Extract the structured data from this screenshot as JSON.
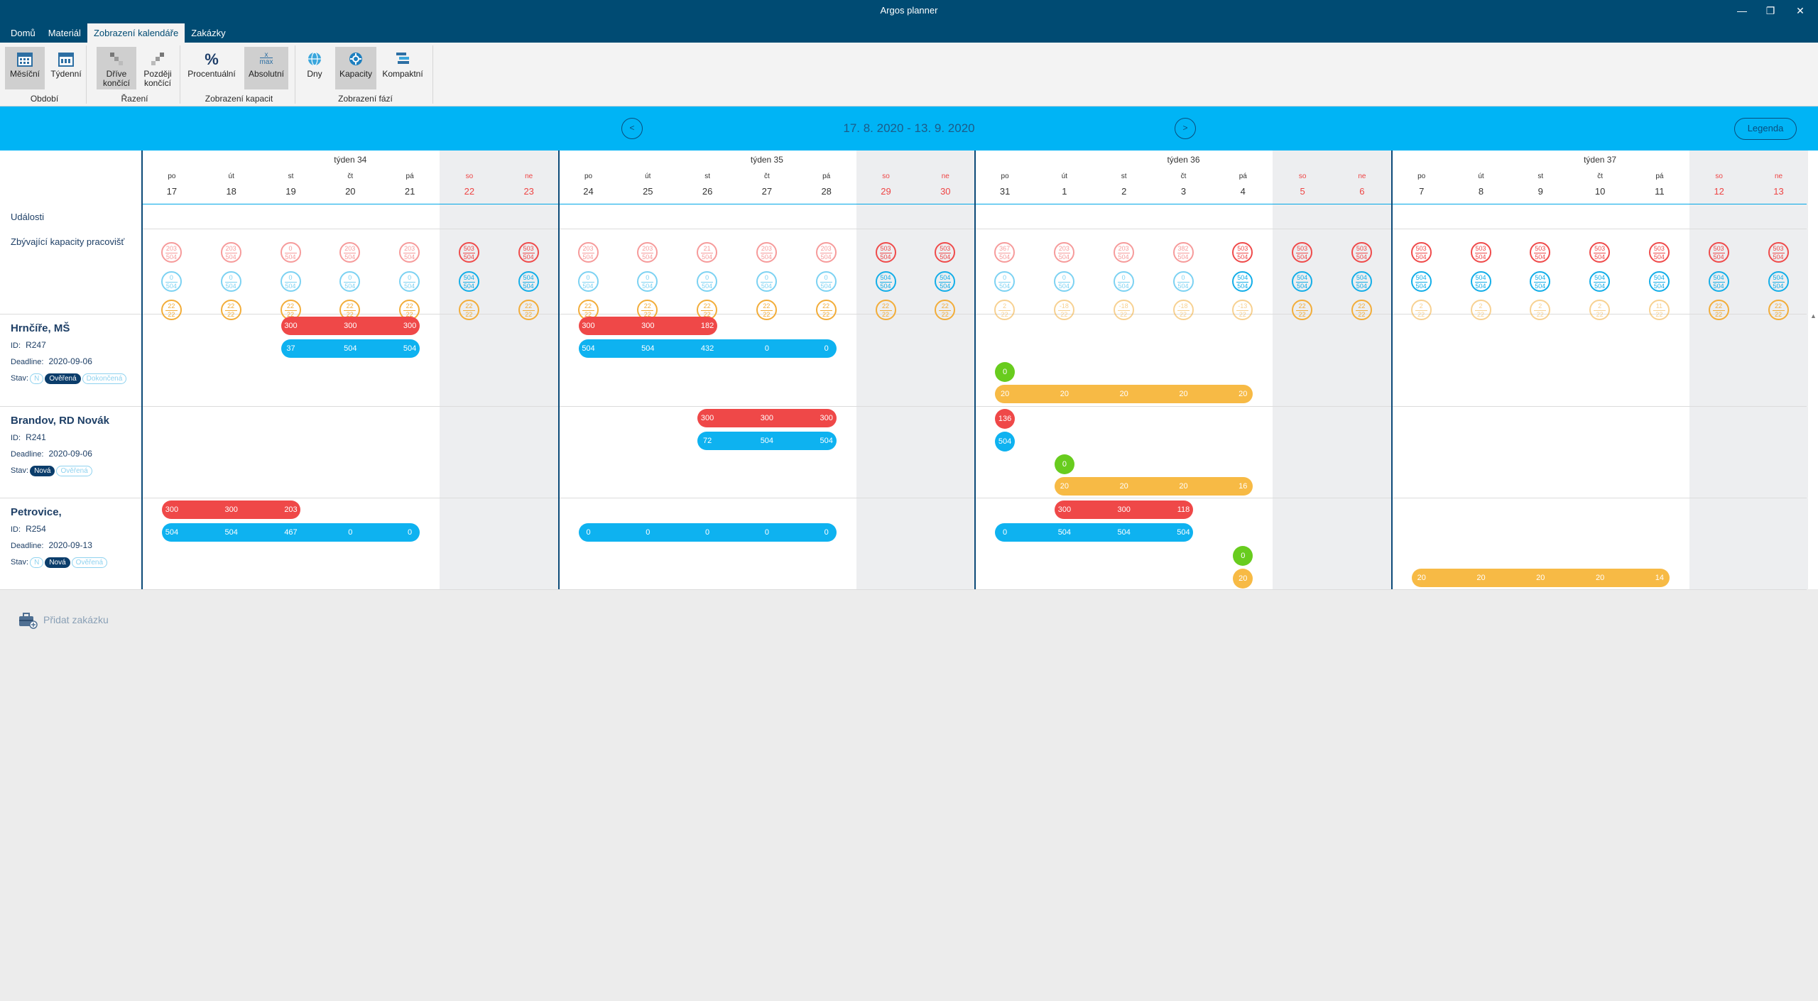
{
  "window": {
    "title": "Argos planner",
    "min": "—",
    "max": "❐",
    "close": "✕"
  },
  "tabs": [
    "Domů",
    "Materiál",
    "Zobrazení kalendáře",
    "Zakázky"
  ],
  "ribbon": {
    "mesicni": "Měsíční",
    "tydenni": "Týdenní",
    "obdobi": "Období",
    "drive1": "Dříve",
    "drive2": "končící",
    "pozdeji1": "Později",
    "pozdeji2": "končící",
    "razeni": "Řazení",
    "procentualni": "Procentuální",
    "absolutni": "Absolutní",
    "zobrazeni_kapacit": "Zobrazení kapacit",
    "dny": "Dny",
    "kapacity": "Kapacity",
    "kompaktni": "Kompaktní",
    "zobrazeni_fazi": "Zobrazení fází",
    "max_x": "x",
    "max_label": "max",
    "percent_icon": "%"
  },
  "nav": {
    "range": "17. 8. 2020 - 13. 9. 2020",
    "prev": "<",
    "next": ">",
    "legend": "Legenda"
  },
  "calendar": {
    "weeks": [
      "týden 34",
      "týden 35",
      "týden 36",
      "týden 37"
    ],
    "daynames": [
      "po",
      "út",
      "st",
      "čt",
      "pá",
      "so",
      "ne"
    ],
    "days": [
      "17",
      "18",
      "19",
      "20",
      "21",
      "22",
      "23",
      "24",
      "25",
      "26",
      "27",
      "28",
      "29",
      "30",
      "31",
      "1",
      "2",
      "3",
      "4",
      "5",
      "6",
      "7",
      "8",
      "9",
      "10",
      "11",
      "12",
      "13"
    ],
    "row_events": "Události",
    "row_capacity": "Zbývající kapacity pracovišť"
  },
  "capacity": {
    "red": [
      [
        "203",
        "504"
      ],
      [
        "203",
        "504"
      ],
      [
        "0",
        "504"
      ],
      [
        "203",
        "504"
      ],
      [
        "203",
        "504"
      ],
      [
        "503",
        "504"
      ],
      [
        "503",
        "504"
      ],
      [
        "203",
        "504"
      ],
      [
        "203",
        "504"
      ],
      [
        "21",
        "504"
      ],
      [
        "203",
        "504"
      ],
      [
        "203",
        "504"
      ],
      [
        "503",
        "504"
      ],
      [
        "503",
        "504"
      ],
      [
        "367",
        "504"
      ],
      [
        "203",
        "504"
      ],
      [
        "203",
        "504"
      ],
      [
        "382",
        "504"
      ],
      [
        "503",
        "504"
      ],
      [
        "503",
        "504"
      ],
      [
        "503",
        "504"
      ],
      [
        "503",
        "504"
      ],
      [
        "503",
        "504"
      ],
      [
        "503",
        "504"
      ],
      [
        "503",
        "504"
      ],
      [
        "503",
        "504"
      ],
      [
        "503",
        "504"
      ],
      [
        "503",
        "504"
      ]
    ],
    "blue": [
      [
        "0",
        "504"
      ],
      [
        "0",
        "504"
      ],
      [
        "0",
        "504"
      ],
      [
        "0",
        "504"
      ],
      [
        "0",
        "504"
      ],
      [
        "504",
        "504"
      ],
      [
        "504",
        "504"
      ],
      [
        "0",
        "504"
      ],
      [
        "0",
        "504"
      ],
      [
        "0",
        "504"
      ],
      [
        "0",
        "504"
      ],
      [
        "0",
        "504"
      ],
      [
        "504",
        "504"
      ],
      [
        "504",
        "504"
      ],
      [
        "0",
        "504"
      ],
      [
        "0",
        "504"
      ],
      [
        "0",
        "504"
      ],
      [
        "0",
        "504"
      ],
      [
        "504",
        "504"
      ],
      [
        "504",
        "504"
      ],
      [
        "504",
        "504"
      ],
      [
        "504",
        "504"
      ],
      [
        "504",
        "504"
      ],
      [
        "504",
        "504"
      ],
      [
        "504",
        "504"
      ],
      [
        "504",
        "504"
      ],
      [
        "504",
        "504"
      ],
      [
        "504",
        "504"
      ]
    ],
    "orange": [
      [
        "22",
        "22"
      ],
      [
        "22",
        "22"
      ],
      [
        "22",
        "22"
      ],
      [
        "22",
        "22"
      ],
      [
        "22",
        "22"
      ],
      [
        "22",
        "22"
      ],
      [
        "22",
        "22"
      ],
      [
        "22",
        "22"
      ],
      [
        "22",
        "22"
      ],
      [
        "22",
        "22"
      ],
      [
        "22",
        "22"
      ],
      [
        "22",
        "22"
      ],
      [
        "22",
        "22"
      ],
      [
        "22",
        "22"
      ],
      [
        "2",
        "22"
      ],
      [
        "-18",
        "22"
      ],
      [
        "-18",
        "22"
      ],
      [
        "-18",
        "22"
      ],
      [
        "-13",
        "22"
      ],
      [
        "22",
        "22"
      ],
      [
        "22",
        "22"
      ],
      [
        "2",
        "22"
      ],
      [
        "2",
        "22"
      ],
      [
        "2",
        "22"
      ],
      [
        "2",
        "22"
      ],
      [
        "11",
        "22"
      ],
      [
        "22",
        "22"
      ],
      [
        "22",
        "22"
      ]
    ]
  },
  "orders": [
    {
      "name": "Hrnčíře, MŠ",
      "id_label": "ID:",
      "id": "R247",
      "deadline_label": "Deadline:",
      "deadline": "2020-09-06",
      "status_label": "Stav:",
      "badges": [
        "N",
        "Ověřená",
        "Dokončená"
      ],
      "active": 1,
      "bars": [
        {
          "color": "red",
          "start": 2,
          "len": 3,
          "row": 0,
          "values": [
            "300",
            "300",
            "300"
          ]
        },
        {
          "color": "blue",
          "start": 2,
          "len": 3,
          "row": 1,
          "values": [
            "37",
            "504",
            "504"
          ]
        },
        {
          "color": "red",
          "start": 7,
          "len": 3,
          "row": 0,
          "values": [
            "300",
            "300",
            "182"
          ]
        },
        {
          "color": "blue",
          "start": 7,
          "len": 5,
          "row": 1,
          "values": [
            "504",
            "504",
            "432",
            "0",
            "0"
          ]
        },
        {
          "color": "green",
          "start": 14,
          "len": 1,
          "row": 2,
          "values": [
            "0"
          ]
        },
        {
          "color": "orange",
          "start": 14,
          "len": 5,
          "row": 3,
          "values": [
            "20",
            "20",
            "20",
            "20",
            "20"
          ]
        }
      ]
    },
    {
      "name": "Brandov, RD Novák",
      "id_label": "ID:",
      "id": "R241",
      "deadline_label": "Deadline:",
      "deadline": "2020-09-06",
      "status_label": "Stav:",
      "badges": [
        "Nová",
        "Ověřená"
      ],
      "active": 0,
      "bars": [
        {
          "color": "red",
          "start": 9,
          "len": 3,
          "row": 0,
          "values": [
            "300",
            "300",
            "300"
          ]
        },
        {
          "color": "blue",
          "start": 9,
          "len": 3,
          "row": 1,
          "values": [
            "72",
            "504",
            "504"
          ]
        },
        {
          "color": "red",
          "start": 14,
          "len": 1,
          "row": 0,
          "values": [
            "136"
          ]
        },
        {
          "color": "blue",
          "start": 14,
          "len": 1,
          "row": 1,
          "values": [
            "504"
          ]
        },
        {
          "color": "green",
          "start": 15,
          "len": 1,
          "row": 2,
          "values": [
            "0"
          ]
        },
        {
          "color": "orange",
          "start": 15,
          "len": 4,
          "row": 3,
          "values": [
            "20",
            "20",
            "20",
            "16"
          ]
        }
      ]
    },
    {
      "name": "Petrovice,",
      "id_label": "ID:",
      "id": "R254",
      "deadline_label": "Deadline:",
      "deadline": "2020-09-13",
      "status_label": "Stav:",
      "badges": [
        "N",
        "Nová",
        "Ověřená"
      ],
      "active": 1,
      "bars": [
        {
          "color": "red",
          "start": 0,
          "len": 3,
          "row": 0,
          "values": [
            "300",
            "300",
            "203"
          ]
        },
        {
          "color": "blue",
          "start": 0,
          "len": 5,
          "row": 1,
          "values": [
            "504",
            "504",
            "467",
            "0",
            "0"
          ]
        },
        {
          "color": "blue",
          "start": 7,
          "len": 5,
          "row": 1,
          "values": [
            "0",
            "0",
            "0",
            "0",
            "0"
          ]
        },
        {
          "color": "red",
          "start": 15,
          "len": 3,
          "row": 0,
          "values": [
            "300",
            "300",
            "118"
          ]
        },
        {
          "color": "blue",
          "start": 14,
          "len": 4,
          "row": 1,
          "values": [
            "0",
            "504",
            "504",
            "504"
          ]
        },
        {
          "color": "green",
          "start": 18,
          "len": 1,
          "row": 2,
          "values": [
            "0"
          ]
        },
        {
          "color": "orange",
          "start": 18,
          "len": 1,
          "row": 3,
          "values": [
            "20"
          ]
        },
        {
          "color": "orange",
          "start": 21,
          "len": 5,
          "row": 3,
          "values": [
            "20",
            "20",
            "20",
            "20",
            "14"
          ]
        }
      ]
    }
  ],
  "add_order": "Přidat zakázku"
}
